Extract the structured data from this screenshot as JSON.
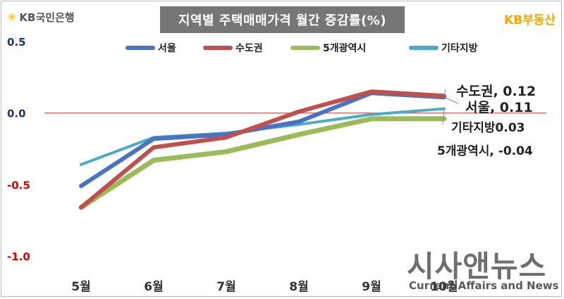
{
  "header": {
    "bank_logo_text": "KB국민은행",
    "brand_right": "KB부동산",
    "title": "지역별 주택매매가격 월간 증감률(%)"
  },
  "watermark": {
    "korean": "시사앤뉴스",
    "english": "Current Affairs and News"
  },
  "colors": {
    "서울": "#4a72c4",
    "수도권": "#c0504d",
    "5개광역시": "#9bbb59",
    "기타지방": "#4bacc6",
    "zero_line": "#c0504d",
    "negative_tick": "#e00000",
    "positive_tick": "#1f3864"
  },
  "chart_data": {
    "type": "line",
    "title": "지역별 주택매매가격 월간 증감률(%)",
    "xlabel": "",
    "ylabel": "",
    "categories": [
      "5월",
      "6월",
      "7월",
      "8월",
      "9월",
      "10월"
    ],
    "ylim": [
      -1.0,
      0.5
    ],
    "yticks": [
      "0.5",
      "0.0",
      "-0.5",
      "-1.0"
    ],
    "grid": false,
    "legend_position": "top",
    "series": [
      {
        "name": "서울",
        "values": [
          -0.51,
          -0.18,
          -0.15,
          -0.06,
          0.14,
          0.11
        ],
        "end_label": "서울, 0.11"
      },
      {
        "name": "수도권",
        "values": [
          -0.66,
          -0.24,
          -0.17,
          0.01,
          0.15,
          0.12
        ],
        "end_label": "수도권, 0.12"
      },
      {
        "name": "5개광역시",
        "values": [
          -0.66,
          -0.33,
          -0.27,
          -0.15,
          -0.04,
          -0.04
        ],
        "end_label": "5개광역시, -0.04"
      },
      {
        "name": "기타지방",
        "values": [
          -0.36,
          -0.17,
          -0.14,
          -0.08,
          -0.01,
          0.03
        ],
        "end_label": "기타지방0.03"
      }
    ]
  }
}
